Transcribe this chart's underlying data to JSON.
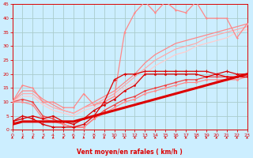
{
  "xlabel": "Vent moyen/en rafales ( km/h )",
  "bg_color": "#cceeff",
  "grid_color": "#aacccc",
  "line_color_dark": "#dd0000",
  "line_color_med": "#ee4444",
  "line_color_light1": "#ff8888",
  "line_color_light2": "#ffaaaa",
  "line_color_light3": "#ffcccc",
  "xlim": [
    0,
    23
  ],
  "ylim": [
    0,
    45
  ],
  "xticks": [
    0,
    1,
    2,
    3,
    4,
    5,
    6,
    7,
    8,
    9,
    10,
    11,
    12,
    13,
    14,
    15,
    16,
    17,
    18,
    19,
    20,
    21,
    22,
    23
  ],
  "yticks": [
    0,
    5,
    10,
    15,
    20,
    25,
    30,
    35,
    40,
    45
  ],
  "x": [
    0,
    1,
    2,
    3,
    4,
    5,
    6,
    7,
    8,
    9,
    10,
    11,
    12,
    13,
    14,
    15,
    16,
    17,
    18,
    19,
    20,
    21,
    22,
    23
  ],
  "line_jagged_y": [
    10,
    16,
    15,
    10,
    10,
    8,
    8,
    13,
    9,
    10,
    12,
    35,
    42,
    46,
    42,
    46,
    43,
    42,
    46,
    40,
    40,
    40,
    33,
    38
  ],
  "line_smooth1_y": [
    10,
    14,
    14,
    11,
    9,
    7,
    6,
    8,
    10,
    12,
    14,
    17,
    20,
    24,
    27,
    29,
    31,
    32,
    33,
    34,
    35,
    36,
    37,
    38
  ],
  "line_smooth2_y": [
    10,
    13,
    13,
    10,
    8,
    7,
    6,
    8,
    9,
    11,
    13,
    16,
    19,
    22,
    25,
    27,
    29,
    30,
    31,
    33,
    34,
    35,
    36,
    37
  ],
  "line_smooth3_y": [
    10,
    12,
    12,
    9,
    7,
    6,
    5,
    7,
    8,
    10,
    12,
    15,
    17,
    20,
    23,
    25,
    27,
    28,
    30,
    31,
    32,
    33,
    35,
    36
  ],
  "line_med1_y": [
    10,
    11,
    10,
    5,
    4,
    2,
    1,
    1,
    4,
    7,
    9,
    11,
    12,
    14,
    15,
    16,
    17,
    18,
    18,
    19,
    19,
    19,
    19,
    20
  ],
  "line_med2_y": [
    10,
    10,
    9,
    4,
    3,
    2,
    1,
    1,
    4,
    6,
    8,
    10,
    11,
    13,
    14,
    15,
    16,
    17,
    17,
    18,
    18,
    18,
    18,
    19
  ],
  "line_thick_y": [
    2,
    3,
    3,
    3,
    3,
    3,
    3,
    4,
    5,
    6,
    7,
    8,
    9,
    10,
    11,
    12,
    13,
    14,
    15,
    16,
    17,
    18,
    19,
    20
  ],
  "line_dot1_y": [
    3,
    5,
    4,
    2,
    1,
    1,
    1,
    2,
    5,
    10,
    18,
    20,
    20,
    21,
    21,
    21,
    21,
    21,
    21,
    21,
    20,
    21,
    20,
    20
  ],
  "line_dot2_y": [
    3,
    4,
    5,
    4,
    5,
    3,
    2,
    4,
    7,
    9,
    11,
    14,
    16,
    20,
    20,
    20,
    20,
    20,
    20,
    19,
    20,
    19,
    19,
    19
  ]
}
